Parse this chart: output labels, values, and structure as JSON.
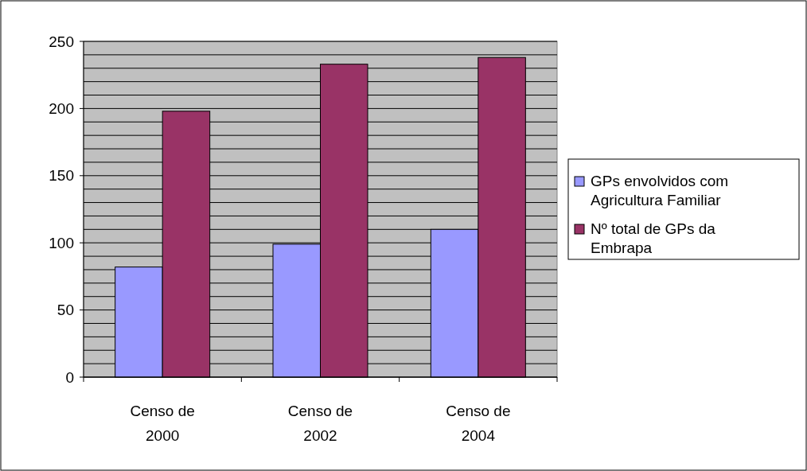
{
  "chart_data": {
    "type": "bar",
    "categories": [
      "Censo de 2000",
      "Censo de 2002",
      "Censo de 2004"
    ],
    "series": [
      {
        "name": "GPs envolvidos com Agricultura Familiar",
        "color": "#9999ff",
        "values": [
          82,
          99,
          110
        ]
      },
      {
        "name": "Nº total de GPs da Embrapa",
        "color": "#993366",
        "values": [
          198,
          233,
          238
        ]
      }
    ],
    "ylim": [
      0,
      250
    ],
    "yticks": [
      0,
      {
        "value": 10,
        "label": null
      },
      {
        "value": 20,
        "label": null
      },
      {
        "value": 30,
        "label": null
      },
      {
        "value": 40,
        "label": null
      },
      50,
      {
        "value": 60,
        "label": null
      },
      {
        "value": 70,
        "label": null
      },
      {
        "value": 80,
        "label": null
      },
      {
        "value": 90,
        "label": null
      },
      100,
      {
        "value": 110,
        "label": null
      },
      {
        "value": 120,
        "label": null
      },
      {
        "value": 130,
        "label": null
      },
      {
        "value": 140,
        "label": null
      },
      150,
      {
        "value": 160,
        "label": null
      },
      {
        "value": 170,
        "label": null
      },
      {
        "value": 180,
        "label": null
      },
      {
        "value": 190,
        "label": null
      },
      200,
      {
        "value": 210,
        "label": null
      },
      {
        "value": 220,
        "label": null
      },
      {
        "value": 230,
        "label": null
      },
      {
        "value": 240,
        "label": null
      },
      250
    ],
    "grid": "y",
    "legend": "right"
  }
}
